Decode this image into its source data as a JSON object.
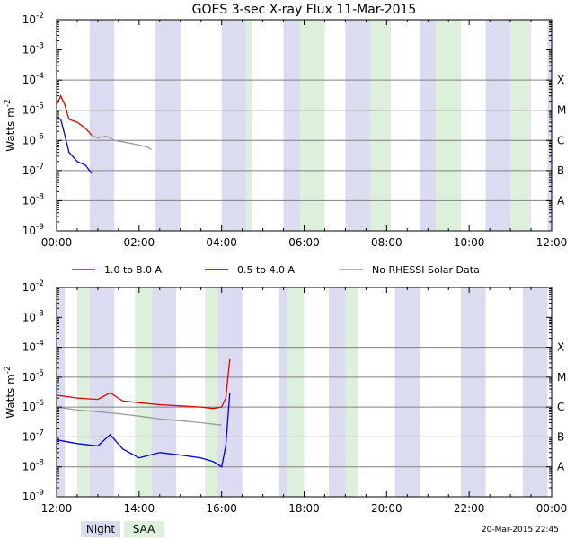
{
  "chart_data": [
    {
      "type": "line",
      "title": "GOES 3-sec X-ray Flux   11-Mar-2015",
      "ylabel_main": "Watts m",
      "ylabel_exp": "-2",
      "y_scale": "log",
      "ylim_exp": [
        -9,
        -2
      ],
      "y_tick_exps": [
        "-9",
        "-8",
        "-7",
        "-6",
        "-5",
        "-4",
        "-3",
        "-2"
      ],
      "xlim_hours": [
        0,
        12
      ],
      "x_ticks": [
        "00:00",
        "02:00",
        "04:00",
        "06:00",
        "08:00",
        "10:00",
        "12:00"
      ],
      "class_labels": [
        {
          "label": "A",
          "exp": -8
        },
        {
          "label": "B",
          "exp": -7
        },
        {
          "label": "C",
          "exp": -6
        },
        {
          "label": "M",
          "exp": -5
        },
        {
          "label": "X",
          "exp": -4
        }
      ],
      "night_intervals_hours": [
        [
          0.8,
          1.4
        ],
        [
          2.4,
          3.0
        ],
        [
          4.0,
          4.6
        ],
        [
          5.5,
          5.9
        ],
        [
          7.0,
          7.6
        ],
        [
          8.8,
          9.2
        ],
        [
          10.4,
          11.0
        ],
        [
          11.9,
          12.0
        ]
      ],
      "saa_intervals_hours": [
        [
          4.6,
          4.75
        ],
        [
          5.9,
          6.5
        ],
        [
          7.6,
          8.1
        ],
        [
          9.2,
          9.8
        ],
        [
          11.0,
          11.5
        ]
      ],
      "series": [
        {
          "name": "1.0 to 8.0 A",
          "color": "#dd0000",
          "points": [
            [
              0.0,
              1.5e-05
            ],
            [
              0.1,
              3e-05
            ],
            [
              0.2,
              1.5e-05
            ],
            [
              0.3,
              5e-06
            ],
            [
              0.5,
              4e-06
            ],
            [
              0.7,
              2.5e-06
            ],
            [
              0.8,
              1.8e-06
            ],
            [
              0.85,
              1.5e-06
            ]
          ]
        },
        {
          "name": "0.5 to 4.0 A",
          "color": "#0000dd",
          "points": [
            [
              0.0,
              6e-06
            ],
            [
              0.1,
              5e-06
            ],
            [
              0.2,
              1.5e-06
            ],
            [
              0.3,
              4e-07
            ],
            [
              0.5,
              2e-07
            ],
            [
              0.7,
              1.5e-07
            ],
            [
              0.8,
              1e-07
            ],
            [
              0.85,
              8e-08
            ]
          ]
        },
        {
          "name": "No RHESSI Solar Data",
          "color": "#999999",
          "points": [
            [
              0.85,
              1.5e-06
            ],
            [
              1.0,
              1.2e-06
            ],
            [
              1.2,
              1.4e-06
            ],
            [
              1.3,
              1.2e-06
            ],
            [
              1.4,
              1e-06
            ],
            [
              1.6,
              9e-07
            ],
            [
              1.8,
              8e-07
            ],
            [
              2.0,
              7e-07
            ],
            [
              2.2,
              6e-07
            ],
            [
              2.3,
              5e-07
            ]
          ]
        }
      ]
    },
    {
      "type": "line",
      "title": "",
      "ylabel_main": "Watts m",
      "ylabel_exp": "-2",
      "y_scale": "log",
      "ylim_exp": [
        -9,
        -2
      ],
      "y_tick_exps": [
        "-9",
        "-8",
        "-7",
        "-6",
        "-5",
        "-4",
        "-3",
        "-2"
      ],
      "xlim_hours": [
        12,
        24
      ],
      "x_ticks": [
        "12:00",
        "14:00",
        "16:00",
        "18:00",
        "20:00",
        "22:00",
        "00:00"
      ],
      "class_labels": [
        {
          "label": "A",
          "exp": -8
        },
        {
          "label": "B",
          "exp": -7
        },
        {
          "label": "C",
          "exp": -6
        },
        {
          "label": "M",
          "exp": -5
        },
        {
          "label": "X",
          "exp": -4
        }
      ],
      "night_intervals_hours": [
        [
          12.0,
          12.2
        ],
        [
          12.8,
          13.4
        ],
        [
          14.3,
          14.9
        ],
        [
          15.9,
          16.5
        ],
        [
          17.4,
          18.0
        ],
        [
          18.6,
          19.2
        ],
        [
          20.2,
          20.8
        ],
        [
          21.8,
          22.4
        ],
        [
          23.3,
          23.9
        ]
      ],
      "saa_intervals_hours": [
        [
          12.5,
          12.8
        ],
        [
          13.9,
          14.3
        ],
        [
          15.6,
          15.9
        ],
        [
          17.6,
          18.0
        ],
        [
          19.0,
          19.3
        ]
      ],
      "series": [
        {
          "name": "1.0 to 8.0 A",
          "color": "#dd0000",
          "points": [
            [
              12.0,
              2.5e-06
            ],
            [
              12.5,
              2e-06
            ],
            [
              13.0,
              1.8e-06
            ],
            [
              13.3,
              3e-06
            ],
            [
              13.6,
              1.6e-06
            ],
            [
              14.0,
              1.4e-06
            ],
            [
              14.5,
              1.2e-06
            ],
            [
              15.0,
              1.1e-06
            ],
            [
              15.5,
              1e-06
            ],
            [
              15.8,
              9e-07
            ],
            [
              16.0,
              1e-06
            ],
            [
              16.1,
              2e-06
            ],
            [
              16.2,
              4e-05
            ]
          ]
        },
        {
          "name": "0.5 to 4.0 A",
          "color": "#0000dd",
          "points": [
            [
              12.0,
              8e-08
            ],
            [
              12.5,
              6e-08
            ],
            [
              13.0,
              5e-08
            ],
            [
              13.3,
              1.2e-07
            ],
            [
              13.6,
              4e-08
            ],
            [
              14.0,
              2e-08
            ],
            [
              14.5,
              3e-08
            ],
            [
              15.0,
              2.5e-08
            ],
            [
              15.5,
              2e-08
            ],
            [
              15.8,
              1.5e-08
            ],
            [
              16.0,
              1e-08
            ],
            [
              16.1,
              5e-08
            ],
            [
              16.2,
              3e-06
            ]
          ]
        },
        {
          "name": "No RHESSI Solar Data",
          "color": "#999999",
          "points": [
            [
              12.0,
              1e-06
            ],
            [
              12.5,
              8e-07
            ],
            [
              13.0,
              7e-07
            ],
            [
              13.5,
              6e-07
            ],
            [
              14.0,
              5e-07
            ],
            [
              14.5,
              4e-07
            ],
            [
              15.0,
              3.5e-07
            ],
            [
              15.5,
              3e-07
            ],
            [
              16.0,
              2.5e-07
            ]
          ]
        }
      ]
    }
  ],
  "legend": [
    {
      "label": "1.0 to 8.0 A",
      "color": "#dd0000"
    },
    {
      "label": "0.5 to 4.0 A",
      "color": "#0000dd"
    },
    {
      "label": "No RHESSI Solar Data",
      "color": "#999999"
    }
  ],
  "bottom_legend": [
    {
      "label": "Night",
      "color": "#dcdcf0"
    },
    {
      "label": "SAA",
      "color": "#dcf0dc"
    }
  ],
  "timestamp": "20-Mar-2015 22:45",
  "colors": {
    "night": "#dcdcf0",
    "saa": "#dcf0dc",
    "grid": "#808080"
  }
}
